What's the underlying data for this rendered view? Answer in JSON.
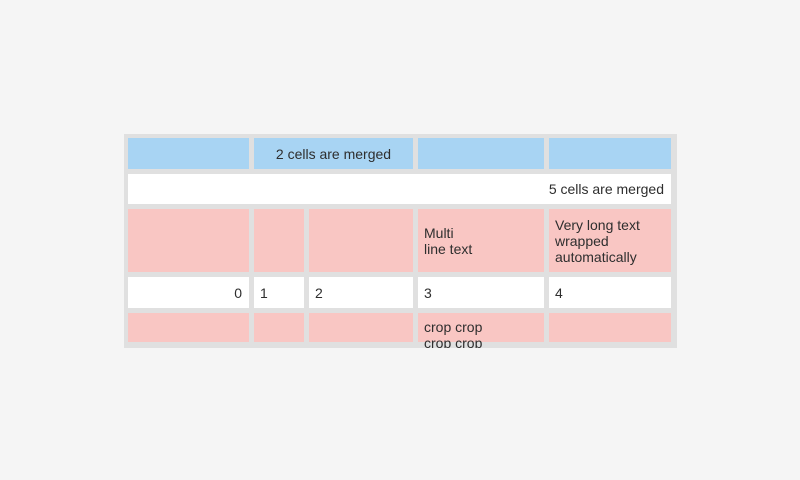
{
  "page": {
    "background_color": "#f5f5f5"
  },
  "table": {
    "background_color": "#e0e0e0",
    "text_color": "#2e2e2e",
    "cell_colors": {
      "blue": "#a8d4f3",
      "pink": "#f9c6c3",
      "white": "#ffffff"
    },
    "rows": [
      {
        "cells": [
          {
            "text": "",
            "span": 1
          },
          {
            "text": "2 cells are merged",
            "span": 2,
            "align": "center"
          },
          {
            "text": "",
            "span": 1
          },
          {
            "text": "",
            "span": 1
          }
        ]
      },
      {
        "cells": [
          {
            "text": "5 cells are merged",
            "span": 5,
            "align": "right"
          }
        ]
      },
      {
        "cells": [
          {
            "text": "",
            "span": 1
          },
          {
            "text": "",
            "span": 1
          },
          {
            "text": "",
            "span": 1
          },
          {
            "text": "Multi\nline text",
            "span": 1
          },
          {
            "text": "Very long text wrapped automatically",
            "span": 1
          }
        ]
      },
      {
        "cells": [
          {
            "text": "0",
            "span": 1,
            "align": "right"
          },
          {
            "text": "1",
            "span": 1
          },
          {
            "text": "2",
            "span": 1
          },
          {
            "text": "3",
            "span": 1
          },
          {
            "text": "4",
            "span": 1
          }
        ]
      },
      {
        "cells": [
          {
            "text": "",
            "span": 1
          },
          {
            "text": "",
            "span": 1
          },
          {
            "text": "",
            "span": 1
          },
          {
            "text": "crop crop crop crop",
            "span": 1,
            "cropped": true
          },
          {
            "text": "",
            "span": 1
          }
        ]
      }
    ]
  }
}
